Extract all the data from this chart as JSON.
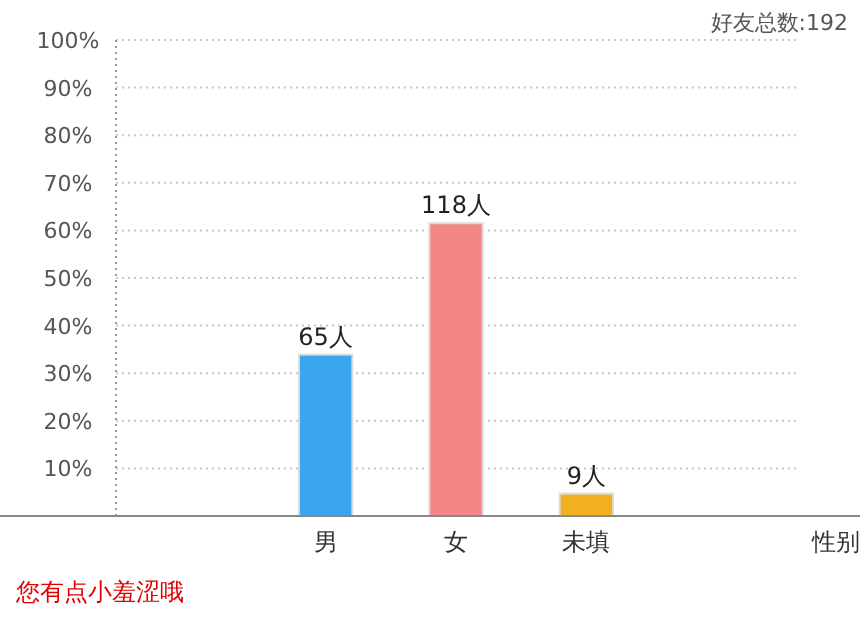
{
  "chart_data": {
    "type": "bar",
    "categories": [
      "男",
      "女",
      "未填"
    ],
    "values": [
      33.9,
      61.5,
      4.7
    ],
    "colors": [
      "#3aa6ee",
      "#f48686",
      "#f0b020"
    ],
    "ylim": [
      0,
      100
    ],
    "yticks": [
      {
        "value": 0,
        "label": null
      },
      {
        "value": 10,
        "label": "10%"
      },
      {
        "value": 20,
        "label": "20%"
      },
      {
        "value": 30,
        "label": "30%"
      },
      {
        "value": 40,
        "label": "40%"
      },
      {
        "value": 50,
        "label": "50%"
      },
      {
        "value": 60,
        "label": "60%"
      },
      {
        "value": 70,
        "label": "70%"
      },
      {
        "value": 80,
        "label": "80%"
      },
      {
        "value": 90,
        "label": "90%"
      },
      {
        "value": 100,
        "label": "100%"
      }
    ],
    "grid": "y",
    "annotations": [
      "好友总数:192",
      "您有点小羞涩哦",
      "性别",
      {
        "text": "65人",
        "x": "男",
        "y": 33.9
      },
      {
        "text": "118人",
        "x": "女",
        "y": 61.5
      },
      {
        "text": "9人",
        "x": "未填",
        "y": 4.7
      }
    ]
  }
}
